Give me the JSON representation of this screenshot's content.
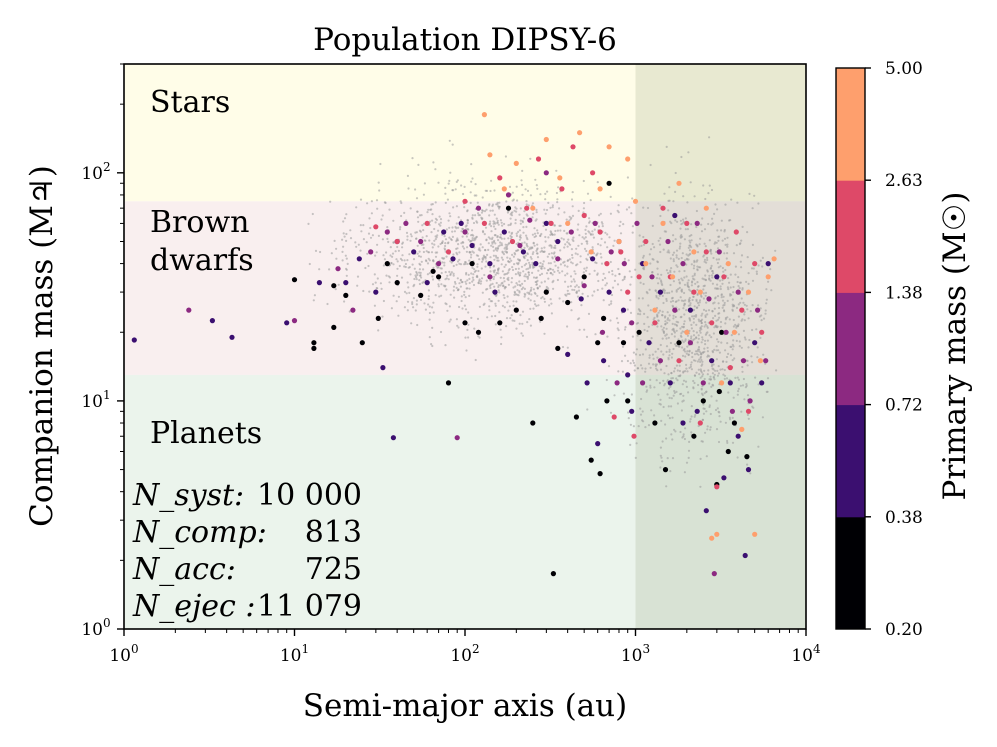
{
  "chart_data": {
    "type": "scatter",
    "title": "Population DIPSY-6",
    "xlabel": "Semi-major axis (au)",
    "ylabel": "Companion mass (M♃)",
    "xscale": "log",
    "yscale": "log",
    "xlim": [
      1,
      10000
    ],
    "ylim": [
      1,
      300
    ],
    "x_ticks": [
      {
        "value": 1,
        "base": "10",
        "exp": "0"
      },
      {
        "value": 10,
        "base": "10",
        "exp": "1"
      },
      {
        "value": 100,
        "base": "10",
        "exp": "2"
      },
      {
        "value": 1000,
        "base": "10",
        "exp": "3"
      },
      {
        "value": 10000,
        "base": "10",
        "exp": "4"
      }
    ],
    "y_ticks": [
      {
        "value": 1,
        "base": "10",
        "exp": "0"
      },
      {
        "value": 10,
        "base": "10",
        "exp": "1"
      },
      {
        "value": 100,
        "base": "10",
        "exp": "2"
      }
    ],
    "regions": [
      {
        "label": "Stars",
        "ymin": 75,
        "ymax": 300,
        "color": "#fffde8"
      },
      {
        "label": "Brown dwarfs",
        "lines": [
          "Brown",
          "dwarfs"
        ],
        "ymin": 13,
        "ymax": 75,
        "color": "#f9efef"
      },
      {
        "label": "Planets",
        "ymin": 1,
        "ymax": 13,
        "color": "#ebf4ec"
      }
    ],
    "shaded_x_range": {
      "xmin": 1000,
      "xmax": 10000,
      "color": "#8a9a78",
      "opacity": 0.2
    },
    "stats": [
      {
        "name": "N_syst:",
        "value": "10 000"
      },
      {
        "name": "N_comp:",
        "value": "813"
      },
      {
        "name": "N_acc:",
        "value": "725"
      },
      {
        "name": "N_ejec :",
        "value": "11 079"
      }
    ],
    "colorbar": {
      "label": "Primary mass (M☉)",
      "ticks": [
        "0.20",
        "0.38",
        "0.72",
        "1.38",
        "2.63",
        "5.00"
      ],
      "colors": [
        "#000004",
        "#3b0f70",
        "#8c2981",
        "#de4968",
        "#fe9f6d"
      ]
    },
    "background_points_color": "#9a9a9a",
    "series": [
      {
        "name": "0.20–0.38",
        "color": "#000004",
        "points": [
          [
            10,
            34
          ],
          [
            13,
            18
          ],
          [
            13,
            17
          ],
          [
            17,
            32
          ],
          [
            17,
            21
          ],
          [
            20,
            29
          ],
          [
            25,
            18
          ],
          [
            31,
            23
          ],
          [
            35,
            40
          ],
          [
            40,
            33
          ],
          [
            55,
            29
          ],
          [
            65,
            37
          ],
          [
            70,
            35
          ],
          [
            80,
            12
          ],
          [
            100,
            22
          ],
          [
            110,
            40
          ],
          [
            120,
            20
          ],
          [
            160,
            22
          ],
          [
            180,
            70
          ],
          [
            200,
            25
          ],
          [
            250,
            8
          ],
          [
            280,
            23
          ],
          [
            300,
            30
          ],
          [
            330,
            1.75
          ],
          [
            350,
            17
          ],
          [
            400,
            27
          ],
          [
            450,
            8.5
          ],
          [
            500,
            35
          ],
          [
            550,
            5.5
          ],
          [
            600,
            18
          ],
          [
            620,
            4.8
          ],
          [
            650,
            23
          ],
          [
            680,
            10
          ],
          [
            700,
            90
          ],
          [
            850,
            18
          ],
          [
            900,
            10
          ],
          [
            1050,
            20
          ],
          [
            1300,
            8
          ],
          [
            1500,
            5
          ],
          [
            1800,
            18
          ],
          [
            2200,
            7
          ],
          [
            2500,
            10
          ],
          [
            3000,
            4.3
          ],
          [
            3100,
            11
          ],
          [
            3200,
            20
          ],
          [
            3500,
            6
          ],
          [
            3800,
            8
          ],
          [
            4500,
            5.7
          ]
        ]
      },
      {
        "name": "0.38–0.72",
        "color": "#3b0f70",
        "points": [
          [
            1.15,
            18.5
          ],
          [
            3.3,
            22.5
          ],
          [
            4.3,
            19
          ],
          [
            9,
            22
          ],
          [
            14,
            33
          ],
          [
            20,
            33
          ],
          [
            24,
            42
          ],
          [
            30,
            30
          ],
          [
            33,
            14
          ],
          [
            38,
            6.9
          ],
          [
            40,
            50
          ],
          [
            50,
            45
          ],
          [
            60,
            33
          ],
          [
            75,
            55
          ],
          [
            85,
            42
          ],
          [
            95,
            60
          ],
          [
            110,
            48
          ],
          [
            140,
            40
          ],
          [
            150,
            30
          ],
          [
            170,
            55
          ],
          [
            220,
            45
          ],
          [
            260,
            40
          ],
          [
            300,
            60
          ],
          [
            350,
            50
          ],
          [
            400,
            16
          ],
          [
            480,
            28
          ],
          [
            520,
            12
          ],
          [
            560,
            42
          ],
          [
            600,
            6.5
          ],
          [
            650,
            15
          ],
          [
            700,
            30
          ],
          [
            800,
            50
          ],
          [
            850,
            25
          ],
          [
            900,
            13
          ],
          [
            950,
            9
          ],
          [
            1100,
            40
          ],
          [
            1200,
            18
          ],
          [
            1400,
            30
          ],
          [
            1600,
            12
          ],
          [
            1700,
            65
          ],
          [
            1900,
            8
          ],
          [
            2100,
            25
          ],
          [
            2300,
            9
          ],
          [
            2600,
            3.3
          ],
          [
            2800,
            15
          ],
          [
            3000,
            35
          ],
          [
            3300,
            4.6
          ],
          [
            3600,
            12
          ],
          [
            4000,
            7
          ],
          [
            4400,
            2.1
          ],
          [
            4600,
            5
          ],
          [
            5000,
            18
          ],
          [
            5500,
            12
          ],
          [
            6000,
            40
          ]
        ]
      },
      {
        "name": "0.72–1.38",
        "color": "#8c2981",
        "points": [
          [
            2.4,
            25
          ],
          [
            10,
            22.5
          ],
          [
            18,
            38
          ],
          [
            22,
            25
          ],
          [
            28,
            45
          ],
          [
            35,
            55
          ],
          [
            45,
            60
          ],
          [
            55,
            50
          ],
          [
            70,
            40
          ],
          [
            90,
            6.9
          ],
          [
            100,
            55
          ],
          [
            120,
            70
          ],
          [
            140,
            35
          ],
          [
            180,
            80
          ],
          [
            210,
            48
          ],
          [
            240,
            62
          ],
          [
            300,
            100
          ],
          [
            350,
            42
          ],
          [
            420,
            55
          ],
          [
            500,
            32
          ],
          [
            580,
            60
          ],
          [
            640,
            20
          ],
          [
            720,
            45
          ],
          [
            780,
            12
          ],
          [
            860,
            40
          ],
          [
            950,
            22
          ],
          [
            1020,
            60
          ],
          [
            1100,
            12
          ],
          [
            1250,
            35
          ],
          [
            1400,
            15
          ],
          [
            1550,
            50
          ],
          [
            1700,
            25
          ],
          [
            1900,
            40
          ],
          [
            2100,
            18
          ],
          [
            2300,
            60
          ],
          [
            2500,
            12
          ],
          [
            2700,
            28
          ],
          [
            2900,
            1.75
          ],
          [
            3100,
            45
          ],
          [
            3400,
            20
          ],
          [
            3700,
            9
          ],
          [
            4000,
            30
          ],
          [
            4300,
            15
          ],
          [
            4700,
            10
          ],
          [
            5200,
            25
          ],
          [
            5800,
            15
          ]
        ]
      },
      {
        "name": "1.38–2.63",
        "color": "#de4968",
        "points": [
          [
            30,
            58
          ],
          [
            40,
            50
          ],
          [
            60,
            60
          ],
          [
            80,
            45
          ],
          [
            100,
            75
          ],
          [
            130,
            60
          ],
          [
            160,
            95
          ],
          [
            190,
            50
          ],
          [
            230,
            70
          ],
          [
            270,
            115
          ],
          [
            320,
            60
          ],
          [
            370,
            85
          ],
          [
            430,
            130
          ],
          [
            500,
            65
          ],
          [
            560,
            100
          ],
          [
            620,
            55
          ],
          [
            680,
            40
          ],
          [
            750,
            8.5
          ],
          [
            820,
            45
          ],
          [
            900,
            30
          ],
          [
            980,
            7
          ],
          [
            1050,
            35
          ],
          [
            1150,
            50
          ],
          [
            1300,
            22
          ],
          [
            1450,
            70
          ],
          [
            1600,
            35
          ],
          [
            1800,
            15
          ],
          [
            2000,
            60
          ],
          [
            2200,
            30
          ],
          [
            2400,
            8
          ],
          [
            2600,
            45
          ],
          [
            2800,
            22
          ],
          [
            3000,
            4.2
          ],
          [
            3300,
            35
          ],
          [
            3600,
            14
          ],
          [
            3900,
            55
          ],
          [
            4200,
            25
          ],
          [
            4600,
            9
          ],
          [
            5000,
            40
          ],
          [
            5500,
            20
          ]
        ]
      },
      {
        "name": "2.63–5.00",
        "color": "#fe9f6d",
        "points": [
          [
            130,
            180
          ],
          [
            140,
            120
          ],
          [
            170,
            85
          ],
          [
            200,
            110
          ],
          [
            250,
            70
          ],
          [
            300,
            140
          ],
          [
            360,
            95
          ],
          [
            400,
            60
          ],
          [
            470,
            150
          ],
          [
            550,
            45
          ],
          [
            620,
            85
          ],
          [
            700,
            130
          ],
          [
            800,
            50
          ],
          [
            900,
            115
          ],
          [
            1000,
            75
          ],
          [
            1150,
            40
          ],
          [
            1300,
            25
          ],
          [
            1450,
            60
          ],
          [
            1650,
            35
          ],
          [
            1800,
            90
          ],
          [
            2000,
            20
          ],
          [
            2200,
            45
          ],
          [
            2400,
            30
          ],
          [
            2600,
            70
          ],
          [
            2800,
            2.5
          ],
          [
            3000,
            2.6
          ],
          [
            3200,
            12
          ],
          [
            3500,
            40
          ],
          [
            3800,
            20
          ],
          [
            4200,
            7.5
          ],
          [
            4600,
            30
          ],
          [
            5000,
            2.6
          ],
          [
            5400,
            15
          ],
          [
            6000,
            35
          ],
          [
            6500,
            42
          ]
        ]
      }
    ]
  }
}
